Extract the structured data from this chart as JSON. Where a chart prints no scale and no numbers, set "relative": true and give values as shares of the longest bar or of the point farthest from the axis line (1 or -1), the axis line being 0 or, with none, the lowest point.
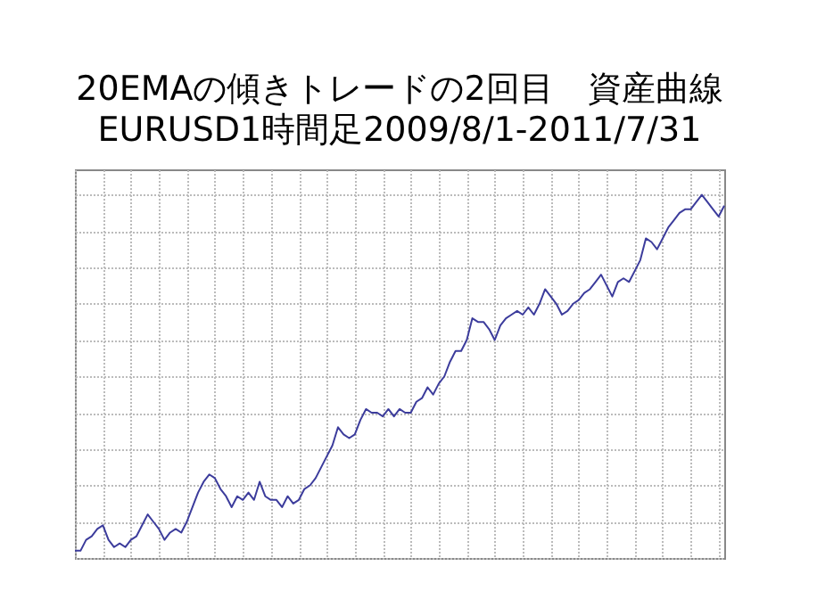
{
  "chart_data": {
    "type": "line",
    "title": "20EMAの傾きトレードの2回目　資産曲線",
    "subtitle": "EURUSD1時間足2009/8/1-2011/7/31",
    "relative": true,
    "grid": true,
    "legend": false,
    "categories": [
      null,
      null,
      null,
      null,
      null,
      null,
      null,
      null,
      null,
      null,
      null,
      null,
      null,
      null,
      null,
      null,
      null,
      null,
      null,
      null,
      null,
      null,
      null,
      null,
      null,
      null,
      null,
      null,
      null,
      null,
      null,
      null,
      null,
      null,
      null,
      null,
      null,
      null,
      null,
      null,
      null,
      null,
      null,
      null,
      null,
      null,
      null,
      null,
      null,
      null,
      null,
      null,
      null,
      null,
      null,
      null,
      null,
      null,
      null,
      null,
      null,
      null,
      null,
      null,
      null,
      null,
      null,
      null,
      null,
      null,
      null,
      null,
      null,
      null,
      null,
      null,
      null,
      null,
      null,
      null,
      null,
      null,
      null,
      null,
      null,
      null,
      null,
      null,
      null,
      null,
      null,
      null,
      null,
      null,
      null,
      null,
      null,
      null,
      null,
      null,
      null,
      null,
      null,
      null,
      null,
      null,
      null,
      null,
      null,
      null,
      null,
      null,
      null,
      null,
      null,
      null,
      null
    ],
    "series": [
      {
        "color": "#3c3c9c",
        "values": [
          0.02,
          0.02,
          0.05,
          0.06,
          0.08,
          0.09,
          0.05,
          0.03,
          0.04,
          0.03,
          0.05,
          0.06,
          0.09,
          0.12,
          0.1,
          0.08,
          0.05,
          0.07,
          0.08,
          0.07,
          0.1,
          0.14,
          0.18,
          0.21,
          0.23,
          0.22,
          0.19,
          0.17,
          0.14,
          0.17,
          0.16,
          0.18,
          0.16,
          0.21,
          0.17,
          0.16,
          0.16,
          0.14,
          0.17,
          0.15,
          0.16,
          0.19,
          0.2,
          0.22,
          0.25,
          0.28,
          0.31,
          0.36,
          0.34,
          0.33,
          0.34,
          0.38,
          0.41,
          0.4,
          0.4,
          0.39,
          0.41,
          0.39,
          0.41,
          0.4,
          0.4,
          0.43,
          0.44,
          0.47,
          0.45,
          0.48,
          0.5,
          0.54,
          0.57,
          0.57,
          0.6,
          0.66,
          0.65,
          0.65,
          0.63,
          0.6,
          0.64,
          0.66,
          0.67,
          0.68,
          0.67,
          0.69,
          0.67,
          0.7,
          0.74,
          0.72,
          0.7,
          0.67,
          0.68,
          0.7,
          0.71,
          0.73,
          0.74,
          0.76,
          0.78,
          0.75,
          0.72,
          0.76,
          0.77,
          0.76,
          0.79,
          0.82,
          0.88,
          0.87,
          0.85,
          0.88,
          0.91,
          0.93,
          0.95,
          0.96,
          0.96,
          0.98,
          1,
          0.98,
          0.96,
          0.94,
          0.97
        ]
      }
    ]
  }
}
